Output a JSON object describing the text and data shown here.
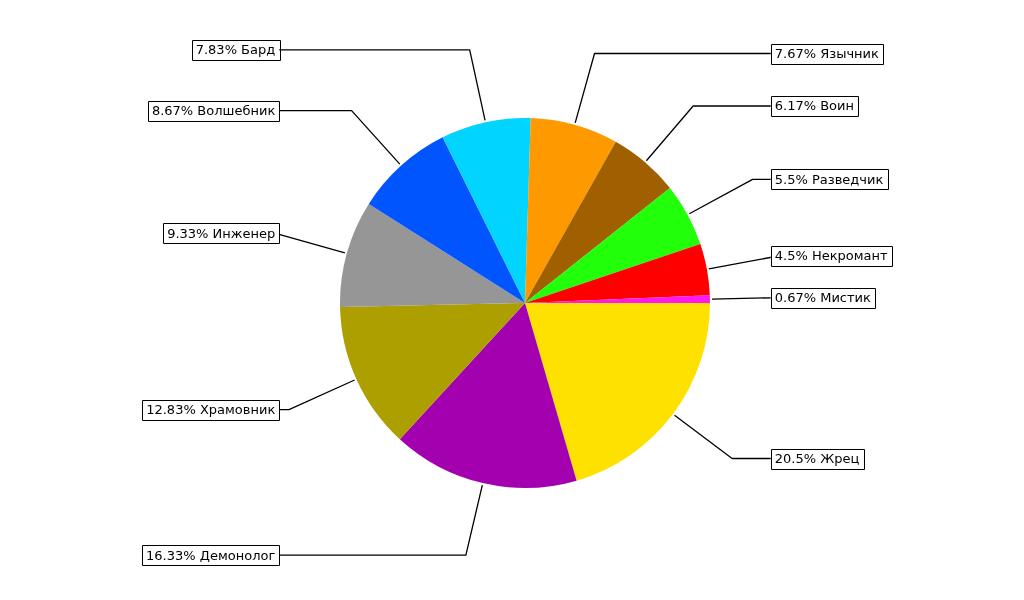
{
  "chart_data": {
    "type": "pie",
    "categories": [
      "Жрец",
      "Демонолог",
      "Храмовник",
      "Инженер",
      "Волшебник",
      "Бард",
      "Язычник",
      "Воин",
      "Разведчик",
      "Некромант",
      "Мистик"
    ],
    "values": [
      20.5,
      16.33,
      12.83,
      9.33,
      8.67,
      7.83,
      7.67,
      6.17,
      5.5,
      4.5,
      0.67
    ],
    "value_labels": [
      "20.5%",
      "16.33%",
      "12.83%",
      "9.33%",
      "8.67%",
      "7.83%",
      "7.67%",
      "6.17%",
      "5.5%",
      "4.5%",
      "0.67%"
    ],
    "colors": [
      "#ffe100",
      "#a300b0",
      "#ad9f00",
      "#969696",
      "#0055ff",
      "#00d4ff",
      "#ff9900",
      "#a06000",
      "#22ff0a",
      "#ff0000",
      "#ff19f0"
    ]
  }
}
